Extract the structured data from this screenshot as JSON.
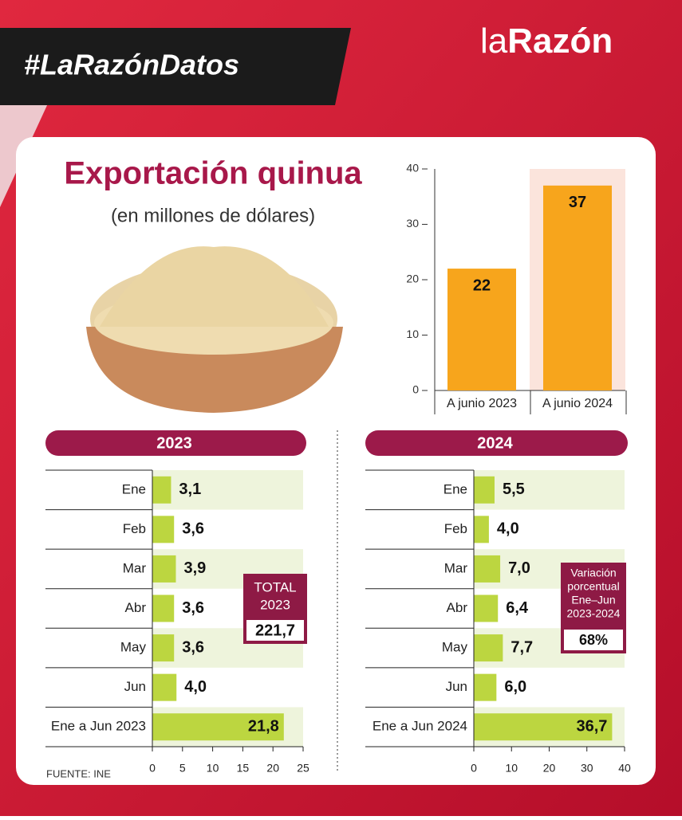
{
  "header": {
    "hashtag": "#LaRazónDatos",
    "logo": [
      "la",
      "Razón"
    ],
    "title": "Exportación quinua",
    "subtitle": "(en millones de dólares)"
  },
  "chart_data": [
    {
      "type": "bar",
      "categories": [
        "A junio 2023",
        "A junio 2024"
      ],
      "values": [
        22,
        37
      ],
      "color": "#f7a51c",
      "ylim": [
        0,
        40
      ],
      "yticks": [
        0,
        10,
        20,
        30,
        40
      ]
    },
    {
      "type": "barh",
      "title": "2023",
      "categories": [
        "Ene",
        "Feb",
        "Mar",
        "Abr",
        "May",
        "Jun",
        "Ene a Jun 2023"
      ],
      "values": [
        3.1,
        3.6,
        3.9,
        3.6,
        3.6,
        4.0,
        21.8
      ],
      "value_labels": [
        "3,1",
        "3,6",
        "3,9",
        "3,6",
        "3,6",
        "4,0",
        "21,8"
      ],
      "color": "#bcd640",
      "xlim": [
        0,
        25
      ],
      "xticks": [
        0,
        5,
        10,
        15,
        20,
        25
      ],
      "annotation": {
        "lines": [
          "TOTAL",
          "2023"
        ],
        "value": "221,7"
      }
    },
    {
      "type": "barh",
      "title": "2024",
      "categories": [
        "Ene",
        "Feb",
        "Mar",
        "Abr",
        "May",
        "Jun",
        "Ene a Jun 2024"
      ],
      "values": [
        5.5,
        4.0,
        7.0,
        6.4,
        7.7,
        6.0,
        36.7
      ],
      "value_labels": [
        "5,5",
        "4,0",
        "7,0",
        "6,4",
        "7,7",
        "6,0",
        "36,7"
      ],
      "color": "#bcd640",
      "xlim": [
        0,
        40
      ],
      "xticks": [
        0,
        10,
        20,
        30,
        40
      ],
      "annotation": {
        "lines": [
          "Variación",
          "porcentual",
          "Ene–Jun",
          "2023-2024"
        ],
        "value": "68%"
      }
    }
  ],
  "source": "FUENTE: INE"
}
